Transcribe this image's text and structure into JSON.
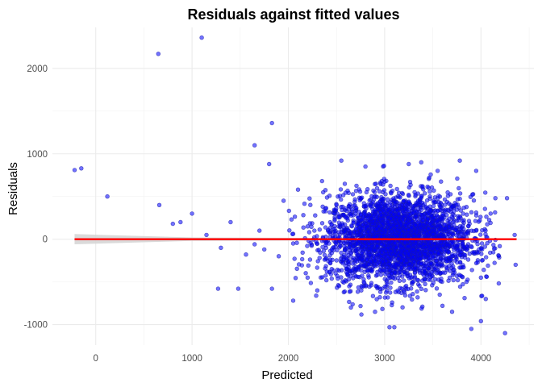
{
  "chart_data": {
    "type": "scatter",
    "title": "Residuals against fitted values",
    "xlabel": "Predicted",
    "ylabel": "Residuals",
    "xlim": [
      -450,
      4550
    ],
    "ylim": [
      -1240,
      2480
    ],
    "x_ticks": [
      0,
      1000,
      2000,
      3000,
      4000
    ],
    "x_tick_labels": [
      "0",
      "1000",
      "2000",
      "3000",
      "4000"
    ],
    "y_ticks": [
      -1000,
      0,
      1000,
      2000
    ],
    "y_tick_labels": [
      "-1000",
      "0",
      "1000",
      "2000"
    ],
    "grid": true,
    "legend": "none",
    "points": [
      {
        "x": -220,
        "y": 810
      },
      {
        "x": -150,
        "y": 830
      },
      {
        "x": 120,
        "y": 500
      },
      {
        "x": 650,
        "y": 2170
      },
      {
        "x": 660,
        "y": 400
      },
      {
        "x": 1100,
        "y": 2360
      },
      {
        "x": 1650,
        "y": 1100
      },
      {
        "x": 1830,
        "y": 1360
      },
      {
        "x": 1800,
        "y": 880
      },
      {
        "x": 880,
        "y": 200
      },
      {
        "x": 1000,
        "y": 300
      },
      {
        "x": 1270,
        "y": -580
      },
      {
        "x": 1480,
        "y": -580
      },
      {
        "x": 1830,
        "y": -580
      },
      {
        "x": 2050,
        "y": -720
      },
      {
        "x": 2300,
        "y": -600
      },
      {
        "x": 3100,
        "y": -1030
      },
      {
        "x": 3050,
        "y": -1030
      },
      {
        "x": 4000,
        "y": -960
      },
      {
        "x": 3900,
        "y": -1050
      },
      {
        "x": 4250,
        "y": -1100
      },
      {
        "x": 4360,
        "y": -300
      },
      {
        "x": 4270,
        "y": 480
      },
      {
        "x": 4150,
        "y": 480
      },
      {
        "x": 4050,
        "y": -700
      },
      {
        "x": 2550,
        "y": 920
      },
      {
        "x": 3380,
        "y": 900
      },
      {
        "x": 3780,
        "y": 920
      },
      {
        "x": 3950,
        "y": 800
      },
      {
        "x": 2100,
        "y": 580
      },
      {
        "x": 1950,
        "y": 450
      },
      {
        "x": 2200,
        "y": 150
      },
      {
        "x": 1700,
        "y": 100
      },
      {
        "x": 1560,
        "y": -180
      },
      {
        "x": 1150,
        "y": 50
      },
      {
        "x": 1400,
        "y": 200
      },
      {
        "x": 2350,
        "y": 680
      },
      {
        "x": 2200,
        "y": -450
      },
      {
        "x": 2400,
        "y": -380
      },
      {
        "x": 2650,
        "y": -800
      },
      {
        "x": 2900,
        "y": -850
      },
      {
        "x": 3700,
        "y": -850
      },
      {
        "x": 3850,
        "y": -500
      },
      {
        "x": 3600,
        "y": -780
      },
      {
        "x": 2800,
        "y": 850
      },
      {
        "x": 3250,
        "y": 880
      },
      {
        "x": 3550,
        "y": 800
      },
      {
        "x": 2050,
        "y": -50
      },
      {
        "x": 1900,
        "y": -200
      },
      {
        "x": 1300,
        "y": -100
      },
      {
        "x": 1650,
        "y": -60
      },
      {
        "x": 800,
        "y": 180
      },
      {
        "x": 4100,
        "y": 300
      },
      {
        "x": 4000,
        "y": -450
      },
      {
        "x": 1750,
        "y": -120
      },
      {
        "x": 2500,
        "y": 400
      },
      {
        "x": 2450,
        "y": -350
      },
      {
        "x": 3950,
        "y": 100
      },
      {
        "x": 4350,
        "y": 50
      },
      {
        "x": 3830,
        "y": -690
      }
    ],
    "cluster": {
      "center_x": 3150,
      "center_y": 0,
      "sd_x": 380,
      "sd_y": 260,
      "count": 3200
    },
    "smooth_line": {
      "x": [
        -220,
        4370
      ],
      "y": [
        0,
        0
      ],
      "color": "#ff0000"
    },
    "confidence_band": {
      "x": [
        -220,
        1000,
        4370
      ],
      "upper": [
        60,
        20,
        8
      ],
      "lower": [
        -60,
        -20,
        -8
      ],
      "color": "#d3d3d3"
    },
    "point_color": "#0000ff",
    "point_stroke": "#1a1aa8"
  }
}
